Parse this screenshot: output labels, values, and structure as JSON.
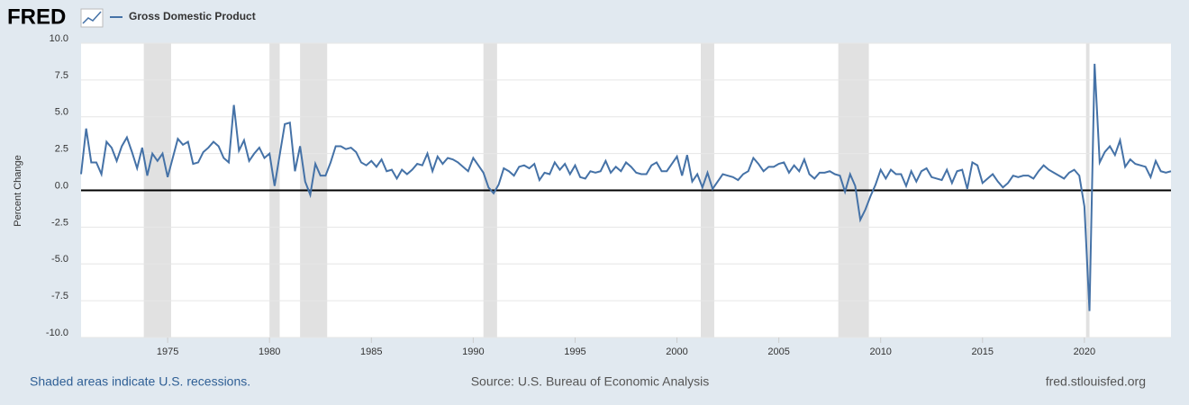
{
  "chart_data": {
    "type": "line",
    "brand": "FRED",
    "ylabel": "Percent Change",
    "note": "Shaded areas indicate U.S. recessions.",
    "source": "Source: U.S. Bureau of Economic Analysis",
    "site": "fred.stlouisfed.org",
    "xlim": [
      1970.75,
      2024.25
    ],
    "xticks": [
      1975,
      1980,
      1985,
      1990,
      1995,
      2000,
      2005,
      2010,
      2015,
      2020
    ],
    "ylim": [
      -10,
      10
    ],
    "yticks": [
      {
        "value": -10,
        "label": "-10.0"
      },
      -7.5,
      {
        "value": -5,
        "label": "-5.0"
      },
      -2.5,
      {
        "value": 0,
        "label": "0.0"
      },
      2.5,
      {
        "value": 5,
        "label": "5.0"
      },
      7.5,
      {
        "value": 10,
        "label": "10.0"
      }
    ],
    "grid": true,
    "zero_line": true,
    "recessions": [
      [
        1973.83,
        1975.17
      ],
      [
        1980.0,
        1980.5
      ],
      [
        1981.5,
        1982.83
      ],
      [
        1990.5,
        1991.17
      ],
      [
        2001.17,
        2001.83
      ],
      [
        2007.92,
        2009.42
      ],
      [
        2020.08,
        2020.25
      ]
    ],
    "recession_color": "#e1e1e1",
    "x": [
      1970.75,
      1971,
      1971.25,
      1971.5,
      1971.75,
      1972,
      1972.25,
      1972.5,
      1972.75,
      1973,
      1973.25,
      1973.5,
      1973.75,
      1974,
      1974.25,
      1974.5,
      1974.75,
      1975,
      1975.25,
      1975.5,
      1975.75,
      1976,
      1976.25,
      1976.5,
      1976.75,
      1977,
      1977.25,
      1977.5,
      1977.75,
      1978,
      1978.25,
      1978.5,
      1978.75,
      1979,
      1979.25,
      1979.5,
      1979.75,
      1980,
      1980.25,
      1980.5,
      1980.75,
      1981,
      1981.25,
      1981.5,
      1981.75,
      1982,
      1982.25,
      1982.5,
      1982.75,
      1983,
      1983.25,
      1983.5,
      1983.75,
      1984,
      1984.25,
      1984.5,
      1984.75,
      1985,
      1985.25,
      1985.5,
      1985.75,
      1986,
      1986.25,
      1986.5,
      1986.75,
      1987,
      1987.25,
      1987.5,
      1987.75,
      1988,
      1988.25,
      1988.5,
      1988.75,
      1989,
      1989.25,
      1989.5,
      1989.75,
      1990,
      1990.25,
      1990.5,
      1990.75,
      1991,
      1991.25,
      1991.5,
      1991.75,
      1992,
      1992.25,
      1992.5,
      1992.75,
      1993,
      1993.25,
      1993.5,
      1993.75,
      1994,
      1994.25,
      1994.5,
      1994.75,
      1995,
      1995.25,
      1995.5,
      1995.75,
      1996,
      1996.25,
      1996.5,
      1996.75,
      1997,
      1997.25,
      1997.5,
      1997.75,
      1998,
      1998.25,
      1998.5,
      1998.75,
      1999,
      1999.25,
      1999.5,
      1999.75,
      2000,
      2000.25,
      2000.5,
      2000.75,
      2001,
      2001.25,
      2001.5,
      2001.75,
      2002,
      2002.25,
      2002.5,
      2002.75,
      2003,
      2003.25,
      2003.5,
      2003.75,
      2004,
      2004.25,
      2004.5,
      2004.75,
      2005,
      2005.25,
      2005.5,
      2005.75,
      2006,
      2006.25,
      2006.5,
      2006.75,
      2007,
      2007.25,
      2007.5,
      2007.75,
      2008,
      2008.25,
      2008.5,
      2008.75,
      2009,
      2009.25,
      2009.5,
      2009.75,
      2010,
      2010.25,
      2010.5,
      2010.75,
      2011,
      2011.25,
      2011.5,
      2011.75,
      2012,
      2012.25,
      2012.5,
      2012.75,
      2013,
      2013.25,
      2013.5,
      2013.75,
      2014,
      2014.25,
      2014.5,
      2014.75,
      2015,
      2015.25,
      2015.5,
      2015.75,
      2016,
      2016.25,
      2016.5,
      2016.75,
      2017,
      2017.25,
      2017.5,
      2017.75,
      2018,
      2018.25,
      2018.5,
      2018.75,
      2019,
      2019.25,
      2019.5,
      2019.75,
      2020,
      2020.25,
      2020.5,
      2020.75,
      2021,
      2021.25,
      2021.5,
      2021.75,
      2022,
      2022.25,
      2022.5,
      2022.75,
      2023,
      2023.25,
      2023.5,
      2023.75,
      2024,
      2024.25
    ],
    "series": [
      {
        "name": "Gross Domestic Product",
        "color": "#4572a7",
        "values": [
          1.1,
          4.2,
          1.9,
          1.9,
          1.1,
          3.3,
          2.9,
          2.0,
          3.0,
          3.6,
          2.6,
          1.5,
          2.9,
          1.0,
          2.5,
          2.0,
          2.5,
          0.9,
          2.2,
          3.5,
          3.1,
          3.3,
          1.8,
          1.9,
          2.6,
          2.9,
          3.3,
          3.0,
          2.2,
          1.9,
          5.8,
          2.7,
          3.4,
          2.0,
          2.5,
          2.9,
          2.2,
          2.5,
          0.3,
          2.4,
          4.5,
          4.6,
          1.3,
          3.0,
          0.6,
          -0.3,
          1.8,
          1.0,
          1.0,
          1.9,
          3.0,
          3.0,
          2.8,
          2.9,
          2.6,
          1.9,
          1.7,
          2.0,
          1.6,
          2.1,
          1.3,
          1.4,
          0.8,
          1.4,
          1.1,
          1.4,
          1.8,
          1.7,
          2.5,
          1.3,
          2.3,
          1.8,
          2.2,
          2.1,
          1.9,
          1.6,
          1.3,
          2.2,
          1.7,
          1.2,
          0.2,
          -0.2,
          0.4,
          1.5,
          1.3,
          1.0,
          1.6,
          1.7,
          1.5,
          1.8,
          0.7,
          1.2,
          1.1,
          1.9,
          1.4,
          1.8,
          1.1,
          1.7,
          0.9,
          0.8,
          1.3,
          1.2,
          1.3,
          2.0,
          1.2,
          1.6,
          1.3,
          1.9,
          1.6,
          1.2,
          1.1,
          1.1,
          1.7,
          1.9,
          1.3,
          1.3,
          1.8,
          2.3,
          1.0,
          2.4,
          0.6,
          1.1,
          0.2,
          1.2,
          0.1,
          0.6,
          1.1,
          1.0,
          0.9,
          0.7,
          1.1,
          1.3,
          2.2,
          1.8,
          1.3,
          1.6,
          1.6,
          1.8,
          1.9,
          1.2,
          1.7,
          1.3,
          2.1,
          1.1,
          0.8,
          1.2,
          1.2,
          1.3,
          1.1,
          1.0,
          -0.1,
          1.1,
          0.3,
          -2.0,
          -1.3,
          -0.4,
          0.4,
          1.4,
          0.8,
          1.4,
          1.1,
          1.1,
          0.3,
          1.3,
          0.6,
          1.3,
          1.5,
          0.9,
          0.8,
          0.7,
          1.4,
          0.5,
          1.3,
          1.4,
          0.1,
          1.9,
          1.7,
          0.5,
          0.8,
          1.1,
          0.6,
          0.2,
          0.5,
          1.0,
          0.9,
          1.0,
          1.0,
          0.8,
          1.3,
          1.7,
          1.4,
          1.2,
          1.0,
          0.8,
          1.2,
          1.4,
          1.0,
          -1.1,
          -8.2,
          8.6,
          1.9,
          2.6,
          3.0,
          2.4,
          3.4,
          1.6,
          2.1,
          1.8,
          1.7,
          1.6,
          0.9,
          2.0,
          1.3,
          1.2,
          1.3
        ]
      }
    ]
  }
}
